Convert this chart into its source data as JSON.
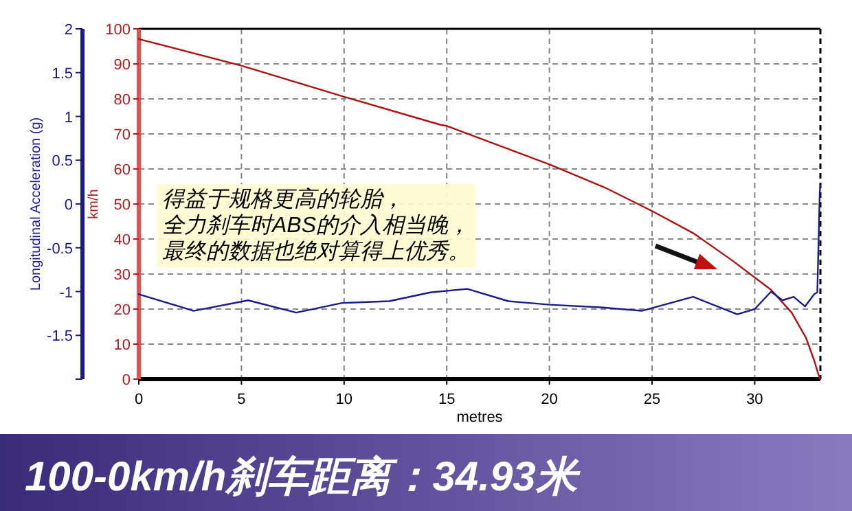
{
  "chart_data": {
    "type": "line",
    "title": "100-0km/h刹车距离：34.93米",
    "xlabel": "metres",
    "ylabel": "km/h",
    "y2label": "Longitudinal Acceleration (g)",
    "xlim": [
      0,
      33.2
    ],
    "xticks": [
      0,
      5,
      10,
      15,
      20,
      25,
      30
    ],
    "ylim": [
      0,
      100
    ],
    "yticks": [
      0,
      10,
      20,
      30,
      40,
      50,
      60,
      70,
      80,
      90,
      100
    ],
    "y2lim": [
      -2,
      2
    ],
    "y2ticks": [
      {
        "value": -2,
        "label": null
      },
      -1.5,
      -1,
      -0.5,
      0,
      0.5,
      1,
      1.5,
      2
    ],
    "grid": true,
    "line_style": "solid",
    "series": [
      {
        "color": "#b01010",
        "x": [
          0,
          5,
          10,
          14.7,
          15,
          20,
          22.7,
          25,
          27,
          28.9,
          30.8,
          31.8,
          32.5,
          32.9,
          33.1,
          33.2
        ],
        "values": [
          97.1,
          89.5,
          80.6,
          72.6,
          72.3,
          61.3,
          54.7,
          48,
          41.7,
          33.9,
          25.5,
          19,
          11.8,
          5.3,
          1.4,
          0
        ]
      },
      {
        "color": "#1a1a8c",
        "axis": "y2",
        "x": [
          0,
          2.67,
          5.33,
          7.67,
          9.9,
          12.2,
          14.2,
          16,
          18,
          20,
          22.5,
          24.5,
          27,
          29.15,
          30,
          30.8,
          31.35,
          31.9,
          32.45,
          32.9,
          33.05,
          33.17,
          33.2
        ],
        "values": [
          -1.03,
          -1.22,
          -1.1,
          -1.24,
          -1.13,
          -1.11,
          -1.01,
          -0.97,
          -1.11,
          -1.15,
          -1.18,
          -1.22,
          -1.06,
          -1.26,
          -1.2,
          -1,
          -1.1,
          -1.06,
          -1.17,
          -1.03,
          -1.01,
          0.14,
          0.21
        ]
      }
    ],
    "ref_lines": [
      {
        "axis": "x",
        "value": 33.2,
        "color": "#000000",
        "line_style": "dashed"
      }
    ],
    "annotations": [
      "得益于规格更高的轮胎，全力刹车时ABS的介入相当晚，最终的数据也绝对算得上优秀。"
    ]
  }
}
